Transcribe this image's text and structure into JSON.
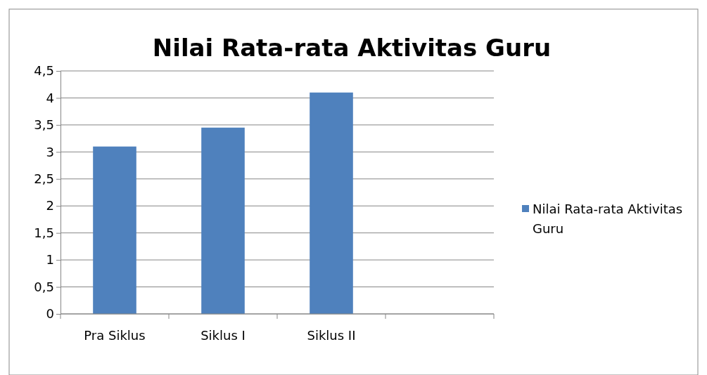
{
  "chart_data": {
    "type": "bar",
    "title": "Nilai Rata-rata Aktivitas Guru",
    "categories": [
      "Pra Siklus",
      "Siklus I",
      "Siklus II",
      null
    ],
    "series": [
      {
        "name": "Nilai Rata-rata Aktivitas Guru",
        "color": "#4f81bd",
        "values": [
          3.1,
          3.45,
          4.1,
          null
        ]
      }
    ],
    "ylim": [
      0,
      4.5
    ],
    "yticks": [
      0,
      {
        "value": 0.5,
        "label": "0,5"
      },
      1,
      {
        "value": 1.5,
        "label": "1,5"
      },
      2,
      {
        "value": 2.5,
        "label": "2,5"
      },
      3,
      {
        "value": 3.5,
        "label": "3,5"
      },
      4,
      {
        "value": 4.5,
        "label": "4,5"
      }
    ],
    "grid": "y",
    "legend": "right"
  }
}
